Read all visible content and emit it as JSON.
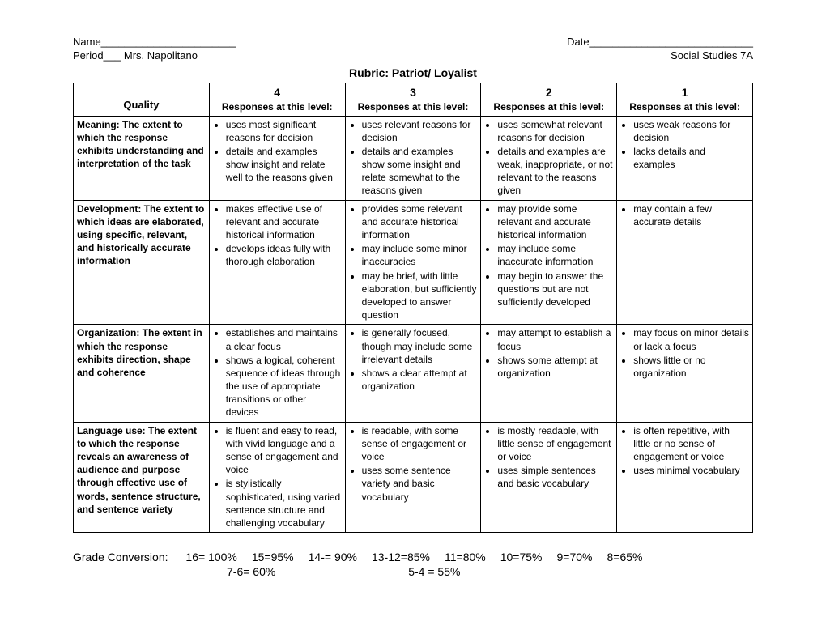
{
  "header": {
    "name_label": "Name_______________________",
    "date_label": "Date____________________________",
    "period_label": "Period___ Mrs. Napolitano",
    "course": "Social Studies 7A",
    "title": "Rubric: Patriot/ Loyalist"
  },
  "table": {
    "quality_label": "Quality",
    "scores": [
      "4",
      "3",
      "2",
      "1"
    ],
    "score_sub": "Responses at this level:",
    "rows": [
      {
        "label": "Meaning: The extent to which the response exhibits understanding and interpretation of the task",
        "c4": [
          "uses most significant reasons for decision",
          "details and examples show insight and relate well to the reasons given"
        ],
        "c3": [
          "uses relevant reasons for decision",
          "details and examples show some insight and relate somewhat to the reasons given"
        ],
        "c2": [
          "uses somewhat relevant reasons for decision",
          "details and examples are weak, inappropriate, or not relevant to the reasons given"
        ],
        "c1": [
          "uses weak reasons for decision",
          "lacks details and examples"
        ]
      },
      {
        "label": "Development: The extent to which ideas are elaborated, using specific, relevant, and historically accurate information",
        "c4": [
          "makes effective use of relevant and accurate historical information",
          "develops ideas fully with thorough elaboration"
        ],
        "c3": [
          "provides some relevant and accurate historical information",
          "may include some minor inaccuracies",
          "may be brief, with little elaboration, but sufficiently developed to answer question"
        ],
        "c2": [
          "may provide some relevant and accurate historical information",
          "may include some inaccurate information",
          "may begin to answer the questions but are not sufficiently developed"
        ],
        "c1": [
          "may contain a few accurate details"
        ]
      },
      {
        "label": "Organization: The extent in which the response exhibits direction, shape and coherence",
        "c4": [
          "establishes and maintains a clear focus",
          "shows a logical, coherent sequence of ideas through the use of appropriate transitions or other devices"
        ],
        "c3": [
          "is generally focused, though may include some irrelevant details",
          "shows a clear attempt at organization"
        ],
        "c2": [
          "may attempt to establish a focus",
          "shows some attempt at organization"
        ],
        "c1": [
          "may focus on minor details or lack a focus",
          "shows little or no organization"
        ]
      },
      {
        "label": "Language use: The extent to which the response reveals an awareness of audience and purpose through effective use of words, sentence structure, and sentence variety",
        "c4": [
          "is fluent and easy to read, with vivid language and a sense of engagement and voice",
          "is stylistically sophisticated, using varied sentence structure and challenging vocabulary"
        ],
        "c3": [
          "is readable, with some sense of engagement or voice",
          "uses some sentence variety and basic vocabulary"
        ],
        "c2": [
          "is mostly readable, with little sense of engagement or voice",
          "uses simple sentences and basic vocabulary"
        ],
        "c1": [
          "is often repetitive, with little or no sense of engagement or voice",
          "uses minimal vocabulary"
        ]
      }
    ]
  },
  "grade": {
    "label": "Grade Conversion:",
    "line1": [
      "16= 100%",
      "15=95%",
      "14-= 90%",
      "13-12=85%",
      "11=80%",
      "10=75%",
      "9=70%",
      "8=65%"
    ],
    "line2a": "7-6= 60%",
    "line2b": "5-4 = 55%"
  }
}
